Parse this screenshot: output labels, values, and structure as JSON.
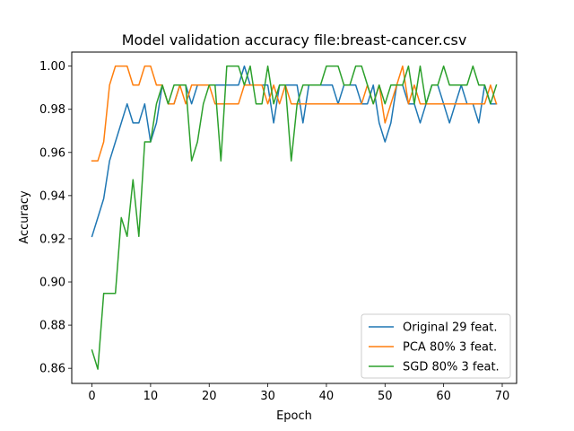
{
  "chart_data": {
    "type": "line",
    "title": "Model validation accuracy file:breast-cancer.csv",
    "xlabel": "Epoch",
    "ylabel": "Accuracy",
    "xlim": [
      -3.45,
      72.45
    ],
    "ylim": [
      0.853,
      1.0065
    ],
    "xticks": [
      0,
      10,
      20,
      30,
      40,
      50,
      60,
      70
    ],
    "yticks": [
      0.86,
      0.88,
      0.9,
      0.92,
      0.94,
      0.96,
      0.98,
      1.0
    ],
    "ytick_labels": [
      "0.86",
      "0.88",
      "0.90",
      "0.92",
      "0.94",
      "0.96",
      "0.98",
      "1.00"
    ],
    "grid": false,
    "legend_position": "lower-right",
    "x": [
      0,
      1,
      2,
      3,
      4,
      5,
      6,
      7,
      8,
      9,
      10,
      11,
      12,
      13,
      14,
      15,
      16,
      17,
      18,
      19,
      20,
      21,
      22,
      23,
      24,
      25,
      26,
      27,
      28,
      29,
      30,
      31,
      32,
      33,
      34,
      35,
      36,
      37,
      38,
      39,
      40,
      41,
      42,
      43,
      44,
      45,
      46,
      47,
      48,
      49,
      50,
      51,
      52,
      53,
      54,
      55,
      56,
      57,
      58,
      59,
      60,
      61,
      62,
      63,
      64,
      65,
      66,
      67,
      68,
      69
    ],
    "series": [
      {
        "name": "Original 29 feat.",
        "color": "#1f77b4",
        "values": [
          0.9211,
          0.9298,
          0.9386,
          0.9561,
          0.9649,
          0.9737,
          0.9825,
          0.9737,
          0.9737,
          0.9825,
          0.9649,
          0.9737,
          0.9912,
          0.9825,
          0.9825,
          0.9912,
          0.9912,
          0.9825,
          0.9912,
          0.9912,
          0.9912,
          0.9912,
          0.9912,
          0.9912,
          0.9912,
          0.9912,
          1.0,
          0.9912,
          0.9912,
          0.9912,
          0.9912,
          0.9737,
          0.9912,
          0.9912,
          0.9912,
          0.9912,
          0.9737,
          0.9912,
          0.9912,
          0.9912,
          0.9912,
          0.9912,
          0.9825,
          0.9912,
          0.9912,
          0.9912,
          0.9825,
          0.9825,
          0.9912,
          0.9737,
          0.9649,
          0.9737,
          0.9912,
          0.9912,
          0.9825,
          0.9825,
          0.9737,
          0.9825,
          0.9912,
          0.9912,
          0.9825,
          0.9737,
          0.9825,
          0.9912,
          0.9825,
          0.9825,
          0.9737,
          0.9912,
          0.9825,
          0.9825
        ]
      },
      {
        "name": "PCA 80% 3 feat.",
        "color": "#ff7f0e",
        "values": [
          0.9561,
          0.9561,
          0.9649,
          0.9912,
          1.0,
          1.0,
          1.0,
          0.9912,
          0.9912,
          1.0,
          1.0,
          0.9912,
          0.9912,
          0.9825,
          0.9825,
          0.9912,
          0.9825,
          0.9912,
          0.9912,
          0.9912,
          0.9912,
          0.9825,
          0.9825,
          0.9825,
          0.9825,
          0.9825,
          0.9912,
          0.9912,
          0.9912,
          0.9912,
          0.9825,
          0.9912,
          0.9825,
          0.9912,
          0.9825,
          0.9825,
          0.9825,
          0.9825,
          0.9825,
          0.9825,
          0.9825,
          0.9825,
          0.9825,
          0.9825,
          0.9825,
          0.9825,
          0.9825,
          0.9912,
          0.9825,
          0.9912,
          0.9737,
          0.9825,
          0.9912,
          1.0,
          0.9825,
          0.9912,
          0.9825,
          0.9825,
          0.9825,
          0.9825,
          0.9825,
          0.9825,
          0.9825,
          0.9825,
          0.9825,
          0.9825,
          0.9825,
          0.9825,
          0.9912,
          0.9825
        ]
      },
      {
        "name": "SGD 80% 3 feat.",
        "color": "#2ca02c",
        "values": [
          0.8684,
          0.8596,
          0.8947,
          0.8947,
          0.8947,
          0.9298,
          0.9211,
          0.9474,
          0.9211,
          0.9649,
          0.9649,
          0.9825,
          0.9912,
          0.9825,
          0.9912,
          0.9912,
          0.9912,
          0.9561,
          0.9649,
          0.9825,
          0.9912,
          0.9912,
          0.9561,
          1.0,
          1.0,
          1.0,
          0.9912,
          1.0,
          0.9825,
          0.9825,
          1.0,
          0.9825,
          0.9912,
          0.9912,
          0.9561,
          0.9825,
          0.9912,
          0.9912,
          0.9912,
          0.9912,
          1.0,
          1.0,
          1.0,
          0.9912,
          0.9912,
          1.0,
          1.0,
          0.9912,
          0.9825,
          0.9912,
          0.9825,
          0.9912,
          0.9912,
          0.9912,
          1.0,
          0.9825,
          1.0,
          0.9825,
          0.9912,
          0.9912,
          1.0,
          0.9912,
          0.9912,
          0.9912,
          0.9912,
          1.0,
          0.9912,
          0.9912,
          0.9825,
          0.9912
        ]
      }
    ]
  }
}
